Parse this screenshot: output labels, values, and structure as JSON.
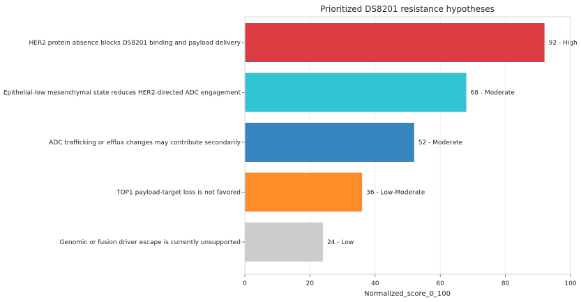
{
  "chart_data": {
    "type": "bar",
    "orientation": "horizontal",
    "title": "Prioritized DS8201 resistance hypotheses",
    "xlabel": "Normalized_score_0_100",
    "ylabel": "",
    "xlim": [
      0,
      100
    ],
    "xticks": [
      0,
      20,
      40,
      60,
      80,
      100
    ],
    "grid": true,
    "categories": [
      "HER2 protein absence blocks DS8201 binding and payload delivery",
      "Epithelial-low mesenchymal state reduces HER2-directed ADC engagement",
      "ADC trafficking or efflux changes may contribute secondarily",
      "TOP1 payload-target loss is not favored",
      "Genomic or fusion driver escape is currently unsupported"
    ],
    "values": [
      92,
      68,
      52,
      36,
      24
    ],
    "data_labels": [
      "92 - High",
      "68 - Moderate",
      "52 - Moderate",
      "36 - Low-Moderate",
      "24 - Low"
    ],
    "colors": [
      "#dc3d43",
      "#31c4d4",
      "#3585be",
      "#fe8c29",
      "#cccccc"
    ]
  }
}
